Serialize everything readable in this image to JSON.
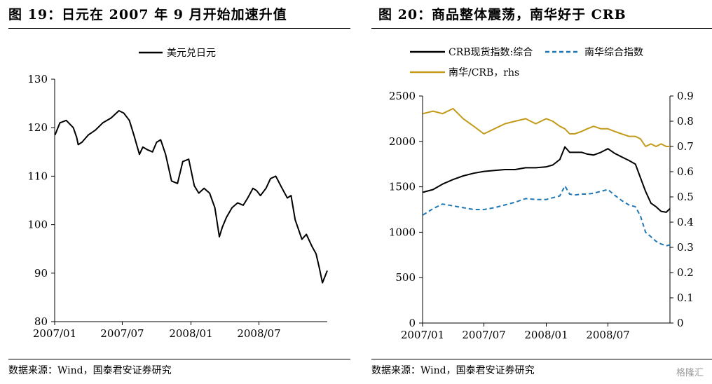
{
  "left": {
    "title": "图 19：日元在 2007 年 9 月开始加速升值",
    "source": "数据来源：Wind，国泰君安证券研究"
  },
  "right": {
    "title": "图 20：商品整体震荡，南华好于 CRB",
    "source": "数据来源：Wind，国泰君安证券研究"
  },
  "watermark": "格隆汇",
  "colors": {
    "black": "#000000",
    "blue": "#1f77b4",
    "gold": "#c49a1a"
  },
  "chart_data": [
    {
      "type": "line",
      "title": "",
      "xlabel": "",
      "ylabel": "",
      "x_ticks": [
        "2007/01",
        "2007/07",
        "2008/01",
        "2008/07"
      ],
      "y_ticks": [
        80,
        90,
        100,
        110,
        120,
        130
      ],
      "ylim": [
        80,
        130
      ],
      "legend_position": "top-center",
      "series": [
        {
          "name": "美元兑日元",
          "color": "#000000",
          "style": "solid",
          "x": [
            "2007/01/02",
            "2007/01/15",
            "2007/02/01",
            "2007/02/20",
            "2007/03/01",
            "2007/03/05",
            "2007/03/15",
            "2007/04/01",
            "2007/04/20",
            "2007/05/10",
            "2007/06/01",
            "2007/06/22",
            "2007/07/05",
            "2007/07/20",
            "2007/08/01",
            "2007/08/16",
            "2007/08/25",
            "2007/09/05",
            "2007/09/20",
            "2007/10/01",
            "2007/10/12",
            "2007/10/25",
            "2007/11/10",
            "2007/11/26",
            "2007/12/10",
            "2007/12/26",
            "2008/01/10",
            "2008/01/22",
            "2008/02/05",
            "2008/02/20",
            "2008/03/05",
            "2008/03/17",
            "2008/03/25",
            "2008/04/05",
            "2008/04/20",
            "2008/05/05",
            "2008/05/20",
            "2008/06/01",
            "2008/06/15",
            "2008/06/25",
            "2008/07/05",
            "2008/07/20",
            "2008/08/01",
            "2008/08/15",
            "2008/09/01",
            "2008/09/15",
            "2008/09/25",
            "2008/10/06",
            "2008/10/15",
            "2008/10/24",
            "2008/11/05",
            "2008/11/20",
            "2008/12/01",
            "2008/12/10",
            "2008/12/18",
            "2008/12/31"
          ],
          "values": [
            118.5,
            121.0,
            121.5,
            120.0,
            118.0,
            116.5,
            117.0,
            118.5,
            119.5,
            121.0,
            122.0,
            123.5,
            123.0,
            121.5,
            118.5,
            114.5,
            116.0,
            115.5,
            115.0,
            117.0,
            117.5,
            114.5,
            109.0,
            108.5,
            113.0,
            113.5,
            108.0,
            106.5,
            107.5,
            106.5,
            103.5,
            97.5,
            99.5,
            101.5,
            103.5,
            104.5,
            104.0,
            105.5,
            107.5,
            107.0,
            106.0,
            107.5,
            109.5,
            110.0,
            107.5,
            105.5,
            106.0,
            101.0,
            99.0,
            97.0,
            98.0,
            95.5,
            94.0,
            91.0,
            88.0,
            90.5
          ]
        }
      ]
    },
    {
      "type": "line",
      "title": "",
      "xlabel": "",
      "ylabel": "",
      "x_ticks": [
        "2007/01",
        "2007/07",
        "2008/01",
        "2008/07"
      ],
      "y_left_ticks": [
        0,
        500,
        1000,
        1500,
        2000,
        2500
      ],
      "y_right_ticks": [
        0,
        0.1,
        0.2,
        0.3,
        0.4,
        0.5,
        0.6,
        0.7,
        0.8,
        0.9
      ],
      "ylim_left": [
        0,
        2500
      ],
      "ylim_right": [
        0,
        0.9
      ],
      "legend_position": "top",
      "series": [
        {
          "name": "CRB现货指数:综合",
          "axis": "left",
          "color": "#000000",
          "style": "solid",
          "x": [
            "2007/01/02",
            "2007/02/01",
            "2007/03/01",
            "2007/04/01",
            "2007/05/01",
            "2007/06/01",
            "2007/07/01",
            "2007/08/01",
            "2007/09/01",
            "2007/10/01",
            "2007/11/01",
            "2007/12/01",
            "2008/01/01",
            "2008/01/20",
            "2008/02/10",
            "2008/02/25",
            "2008/03/10",
            "2008/03/25",
            "2008/04/15",
            "2008/05/01",
            "2008/05/20",
            "2008/06/10",
            "2008/07/01",
            "2008/07/20",
            "2008/08/10",
            "2008/09/01",
            "2008/09/20",
            "2008/10/05",
            "2008/10/20",
            "2008/11/05",
            "2008/11/20",
            "2008/12/05",
            "2008/12/20",
            "2008/12/31"
          ],
          "values": [
            1440,
            1470,
            1530,
            1580,
            1620,
            1650,
            1670,
            1680,
            1690,
            1690,
            1710,
            1710,
            1720,
            1740,
            1800,
            1940,
            1880,
            1880,
            1880,
            1860,
            1850,
            1880,
            1920,
            1870,
            1830,
            1790,
            1750,
            1600,
            1450,
            1320,
            1280,
            1230,
            1220,
            1260
          ]
        },
        {
          "name": "南华综合指数",
          "axis": "left",
          "color": "#1f77b4",
          "style": "dashed",
          "x": [
            "2007/01/02",
            "2007/02/01",
            "2007/03/01",
            "2007/04/01",
            "2007/05/01",
            "2007/06/01",
            "2007/07/01",
            "2007/08/01",
            "2007/09/01",
            "2007/10/01",
            "2007/11/01",
            "2007/12/01",
            "2008/01/01",
            "2008/01/20",
            "2008/02/10",
            "2008/02/25",
            "2008/03/10",
            "2008/03/25",
            "2008/04/15",
            "2008/05/01",
            "2008/05/20",
            "2008/06/10",
            "2008/07/01",
            "2008/07/20",
            "2008/08/10",
            "2008/09/01",
            "2008/09/20",
            "2008/10/05",
            "2008/10/20",
            "2008/11/05",
            "2008/11/20",
            "2008/12/05",
            "2008/12/20",
            "2008/12/31"
          ],
          "values": [
            1190,
            1260,
            1310,
            1290,
            1270,
            1250,
            1250,
            1270,
            1300,
            1330,
            1370,
            1360,
            1360,
            1380,
            1400,
            1510,
            1420,
            1410,
            1420,
            1420,
            1430,
            1450,
            1470,
            1410,
            1350,
            1300,
            1280,
            1180,
            1000,
            950,
            900,
            870,
            850,
            860
          ]
        },
        {
          "name": "南华/CRB，rhs",
          "axis": "right",
          "color": "#c49a1a",
          "style": "solid",
          "x": [
            "2007/01/02",
            "2007/02/01",
            "2007/03/01",
            "2007/04/01",
            "2007/05/01",
            "2007/06/01",
            "2007/07/01",
            "2007/08/01",
            "2007/09/01",
            "2007/10/01",
            "2007/11/01",
            "2007/12/01",
            "2008/01/01",
            "2008/01/20",
            "2008/02/10",
            "2008/02/25",
            "2008/03/10",
            "2008/03/25",
            "2008/04/15",
            "2008/05/01",
            "2008/05/20",
            "2008/06/10",
            "2008/07/01",
            "2008/07/20",
            "2008/08/10",
            "2008/09/01",
            "2008/09/20",
            "2008/10/05",
            "2008/10/20",
            "2008/11/05",
            "2008/11/20",
            "2008/12/05",
            "2008/12/20",
            "2008/12/31"
          ],
          "values": [
            0.83,
            0.84,
            0.83,
            0.85,
            0.81,
            0.78,
            0.75,
            0.77,
            0.79,
            0.8,
            0.81,
            0.79,
            0.81,
            0.8,
            0.78,
            0.77,
            0.75,
            0.75,
            0.76,
            0.77,
            0.78,
            0.77,
            0.77,
            0.76,
            0.75,
            0.74,
            0.74,
            0.73,
            0.7,
            0.71,
            0.7,
            0.71,
            0.7,
            0.7
          ]
        }
      ]
    }
  ]
}
